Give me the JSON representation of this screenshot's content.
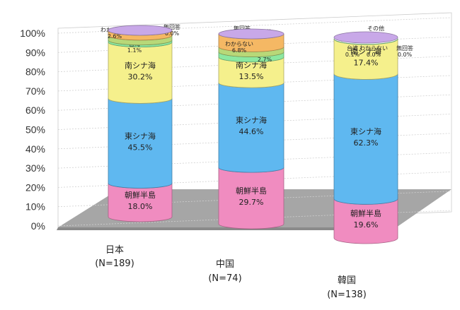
{
  "chart_data": {
    "type": "bar",
    "subtype": "stacked-100-cylinder-3d",
    "categories": [
      {
        "name": "日本",
        "n": "(N=189)"
      },
      {
        "name": "中国",
        "n": "(N=74)"
      },
      {
        "name": "韓国",
        "n": "(N=138)"
      }
    ],
    "series": [
      {
        "name": "朝鮮半島",
        "color": "#f08cc0",
        "values": [
          18.0,
          29.7,
          19.6
        ]
      },
      {
        "name": "東シナ海",
        "color": "#5fb8f0",
        "values": [
          45.5,
          44.6,
          62.3
        ]
      },
      {
        "name": "南シナ海",
        "color": "#f5f08c",
        "values": [
          30.2,
          13.5,
          17.4
        ]
      },
      {
        "name": "台湾",
        "color": "#8ce8a0",
        "values": [
          1.1,
          2.7,
          0.1
        ]
      },
      {
        "name": "その他",
        "color": "#b8d878",
        "values": [
          2.6,
          2.7,
          0.0
        ]
      },
      {
        "name": "わからない",
        "color": "#f5b864",
        "values": [
          2.6,
          6.8,
          0.0
        ]
      },
      {
        "name": "無回答",
        "color": "#c8a8e8",
        "values": [
          0.0,
          0.0,
          0.0
        ]
      }
    ],
    "value_labels": {
      "朝鮮半島": [
        "18.0%",
        "29.7%",
        "19.6%"
      ],
      "東シナ海": [
        "45.5%",
        "44.6%",
        "62.3%"
      ],
      "南シナ海": [
        "30.2%",
        "13.5%",
        "17.4%"
      ],
      "台湾": [
        "1.1%",
        "2.7%",
        "0.1%"
      ],
      "その他": [
        "2.6%",
        "2.7%",
        "0.0%"
      ],
      "わからない": [
        "2.6%",
        "6.8%",
        "0.0%"
      ],
      "無回答": [
        "0.0%",
        "0.0%",
        "0.0%"
      ]
    },
    "y_ticks": [
      "0%",
      "10%",
      "20%",
      "30%",
      "40%",
      "50%",
      "60%",
      "70%",
      "80%",
      "90%",
      "100%"
    ],
    "ylim": [
      0,
      100
    ],
    "grid": true,
    "legend": "none"
  }
}
